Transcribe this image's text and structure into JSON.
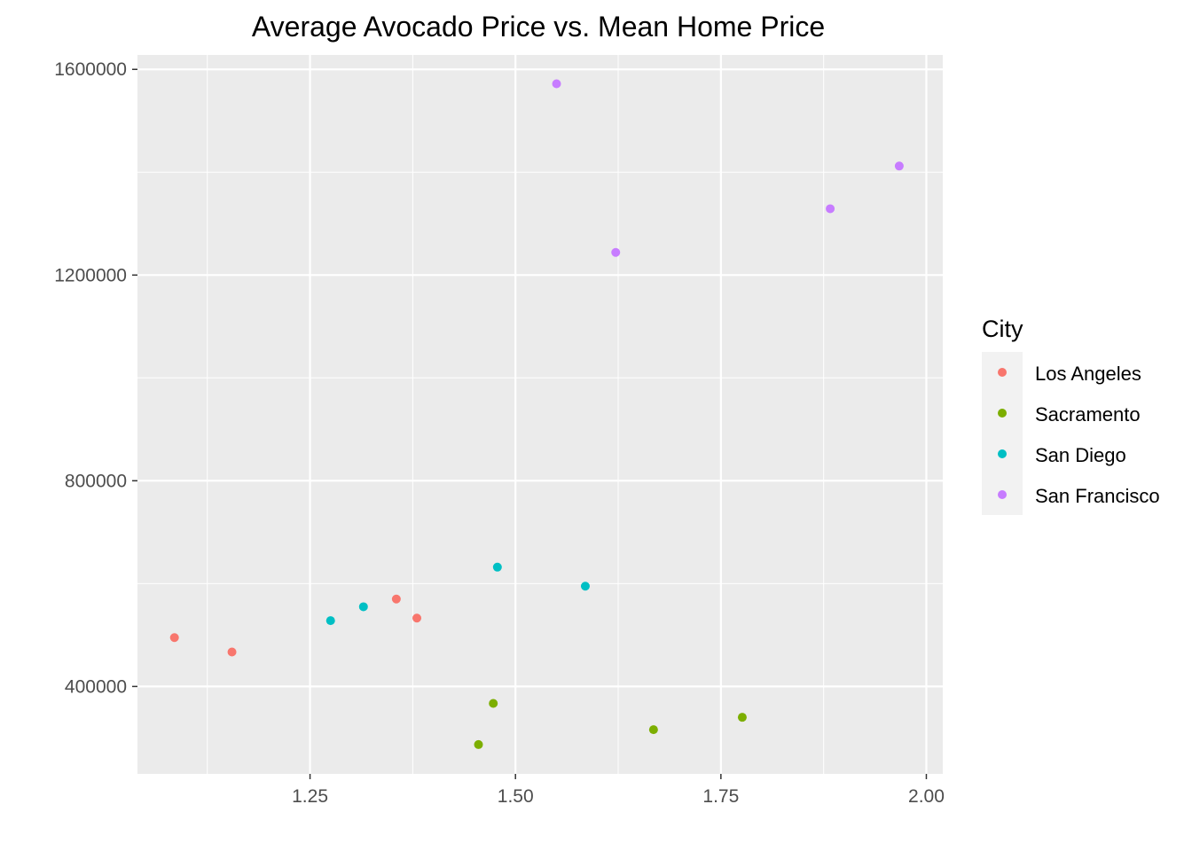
{
  "chart_data": {
    "type": "scatter",
    "title": "Average Avocado Price vs. Mean Home Price",
    "xlabel": "",
    "ylabel": "",
    "xlim": [
      1.04,
      2.02
    ],
    "ylim": [
      230000,
      1628000
    ],
    "x_ticks": [
      1.25,
      1.5,
      1.75,
      2.0
    ],
    "x_tick_labels": [
      "1.25",
      "1.50",
      "1.75",
      "2.00"
    ],
    "y_ticks": [
      400000,
      800000,
      1200000,
      1600000
    ],
    "y_tick_labels": [
      "400000",
      "800000",
      "1200000",
      "1600000"
    ],
    "grid": true,
    "panel_background": "#ebebeb",
    "legend": {
      "title": "City",
      "position": "right"
    },
    "series": [
      {
        "name": "Los Angeles",
        "color": "#f8766d",
        "points": [
          {
            "x": 1.085,
            "y": 495000
          },
          {
            "x": 1.155,
            "y": 467000
          },
          {
            "x": 1.355,
            "y": 570000
          },
          {
            "x": 1.38,
            "y": 533000
          }
        ]
      },
      {
        "name": "Sacramento",
        "color": "#7cae00",
        "points": [
          {
            "x": 1.455,
            "y": 287000
          },
          {
            "x": 1.473,
            "y": 367000
          },
          {
            "x": 1.668,
            "y": 316000
          },
          {
            "x": 1.776,
            "y": 340000
          }
        ]
      },
      {
        "name": "San Diego",
        "color": "#00bfc4",
        "points": [
          {
            "x": 1.275,
            "y": 528000
          },
          {
            "x": 1.315,
            "y": 555000
          },
          {
            "x": 1.478,
            "y": 632000
          },
          {
            "x": 1.585,
            "y": 595000
          }
        ]
      },
      {
        "name": "San Francisco",
        "color": "#c77cff",
        "points": [
          {
            "x": 1.55,
            "y": 1572000
          },
          {
            "x": 1.622,
            "y": 1244000
          },
          {
            "x": 1.883,
            "y": 1329000
          },
          {
            "x": 1.967,
            "y": 1412000
          }
        ]
      }
    ]
  }
}
